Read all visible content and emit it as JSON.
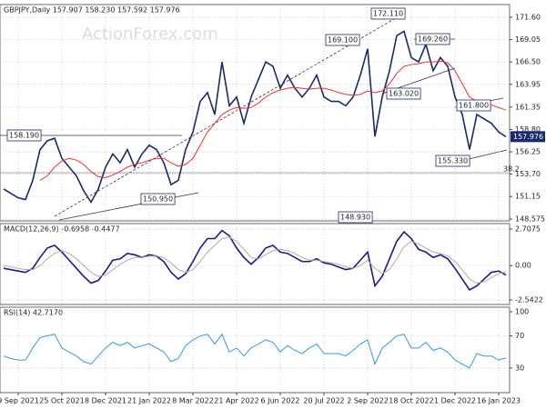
{
  "chart_data": [
    {
      "type": "line",
      "title": "GBPJPY,Daily 157.907 158.230 157.592 157.976",
      "watermark": "ActionForex.com",
      "last_price_label": "157.976",
      "categories": [
        null,
        null,
        "9 Sep 2021",
        null,
        null,
        null,
        null,
        null,
        "25 Oct 2021",
        null,
        null,
        null,
        null,
        null,
        "8 Dec 2021",
        null,
        null,
        null,
        null,
        null,
        "21 Jan 2022",
        null,
        null,
        null,
        null,
        null,
        "8 Mar 2022",
        null,
        null,
        null,
        null,
        null,
        "21 Apr 2022",
        null,
        null,
        null,
        null,
        null,
        "6 Jun 2022",
        null,
        null,
        null,
        null,
        null,
        "20 Jul 2022",
        null,
        null,
        null,
        null,
        null,
        "2 Sep 2022",
        null,
        null,
        null,
        null,
        null,
        "18 Oct 2022",
        null,
        null,
        null,
        null,
        null,
        "1 Dec 2022",
        null,
        null,
        null,
        null,
        null,
        "16 Jan 2023",
        null
      ],
      "series": [
        {
          "name": "Price",
          "color": "#1a2a6c",
          "values": [
            152.0,
            151.5,
            151.0,
            150.8,
            153.0,
            156.5,
            157.5,
            157.8,
            155.5,
            154.5,
            153.5,
            151.8,
            150.5,
            152.0,
            154.5,
            156.0,
            155.0,
            156.5,
            154.5,
            156.0,
            157.0,
            156.5,
            155.0,
            152.5,
            153.0,
            156.5,
            158.5,
            162.0,
            163.0,
            160.5,
            166.5,
            161.5,
            162.5,
            159.5,
            162.5,
            164.5,
            166.5,
            166.0,
            163.5,
            165.0,
            163.5,
            162.5,
            163.5,
            165.0,
            162.5,
            162.0,
            162.0,
            161.5,
            162.5,
            165.0,
            168.0,
            158.0,
            162.5,
            165.5,
            169.5,
            170.0,
            167.0,
            166.5,
            168.5,
            165.5,
            167.0,
            166.0,
            162.5,
            160.5,
            156.5,
            160.5,
            160.0,
            159.5,
            158.5,
            157.976
          ]
        },
        {
          "name": "MA",
          "color": "#e8312f",
          "values": [
            null,
            null,
            null,
            null,
            null,
            153.0,
            153.5,
            154.5,
            155.2,
            155.5,
            155.3,
            154.8,
            154.0,
            153.4,
            153.3,
            153.6,
            154.0,
            154.5,
            154.8,
            155.0,
            155.3,
            155.5,
            155.5,
            155.0,
            154.6,
            154.8,
            155.5,
            157.0,
            158.5,
            159.5,
            160.5,
            161.0,
            161.3,
            161.2,
            161.3,
            161.8,
            162.5,
            163.0,
            163.3,
            163.5,
            163.6,
            163.5,
            163.4,
            163.5,
            163.5,
            163.3,
            163.0,
            162.8,
            162.7,
            162.8,
            163.2,
            163.0,
            163.2,
            164.0,
            165.2,
            166.0,
            166.2,
            166.3,
            166.5,
            166.5,
            166.6,
            166.4,
            165.5,
            164.0,
            162.5,
            162.0,
            161.8,
            161.6,
            161.3,
            161.0
          ]
        }
      ],
      "ylim": [
        148.37,
        173.05
      ],
      "yticks": [
        148.575,
        151.15,
        {
          "value": 153.7,
          "label": "153.70"
        },
        156.25,
        {
          "value": 158.8,
          "label": "158.80"
        },
        161.35,
        163.95,
        {
          "value": 166.5,
          "label": "166.50"
        },
        169.05,
        {
          "value": 171.6,
          "label": "171.60"
        }
      ],
      "annotations": [
        "158.190",
        "150.950",
        "148.930",
        "169.100",
        "172.110",
        "169.260",
        "163.020",
        "161.800",
        "155.330",
        "38.2"
      ],
      "grid": true
    },
    {
      "type": "line",
      "title": "MACD(12,26,9) -0.6958 -0.4477",
      "series": [
        {
          "name": "MACD",
          "color": "#1a1a8c",
          "values": [
            -0.2,
            -0.3,
            -0.4,
            -0.5,
            -0.2,
            0.6,
            1.3,
            1.5,
            1.0,
            0.4,
            -0.2,
            -0.8,
            -1.3,
            -1.1,
            -0.4,
            0.4,
            0.5,
            0.9,
            0.8,
            0.6,
            0.8,
            0.7,
            0.3,
            -0.5,
            -1.0,
            -0.6,
            0.3,
            1.3,
            2.0,
            2.0,
            2.6,
            2.2,
            1.3,
            0.6,
            0.1,
            0.6,
            1.3,
            1.5,
            1.0,
            0.9,
            0.6,
            0.3,
            0.3,
            0.5,
            0.2,
            0.1,
            -0.1,
            -0.3,
            -0.2,
            0.4,
            1.0,
            -1.5,
            -0.8,
            0.5,
            1.8,
            2.5,
            2.0,
            1.2,
            1.0,
            0.6,
            0.8,
            0.5,
            -0.2,
            -1.0,
            -1.8,
            -1.5,
            -1.0,
            -0.5,
            -0.4,
            -0.6958
          ]
        },
        {
          "name": "Signal",
          "color": "#c8a0a0",
          "values": [
            0.0,
            -0.1,
            -0.2,
            -0.3,
            -0.3,
            0.0,
            0.5,
            0.9,
            1.1,
            0.9,
            0.5,
            0.0,
            -0.5,
            -0.8,
            -0.7,
            -0.3,
            0.1,
            0.4,
            0.6,
            0.6,
            0.7,
            0.7,
            0.6,
            0.2,
            -0.3,
            -0.5,
            -0.3,
            0.3,
            1.0,
            1.5,
            2.0,
            2.1,
            1.8,
            1.2,
            0.6,
            0.5,
            0.8,
            1.1,
            1.2,
            1.1,
            0.9,
            0.6,
            0.4,
            0.4,
            0.3,
            0.2,
            0.1,
            -0.1,
            -0.2,
            0.0,
            0.4,
            -0.2,
            -0.6,
            -0.3,
            0.5,
            1.4,
            1.8,
            1.6,
            1.3,
            1.0,
            0.9,
            0.7,
            0.3,
            -0.3,
            -1.0,
            -1.3,
            -1.2,
            -0.9,
            -0.6,
            -0.4477
          ]
        }
      ],
      "ylim": [
        -2.88,
        3.11
      ],
      "yticks": [
        -2.5422,
        {
          "value": 0,
          "label": "0.00"
        },
        2.7075
      ]
    },
    {
      "type": "line",
      "title": "RSI(14) 42.7170",
      "series": [
        {
          "name": "RSI",
          "color": "#3399e0",
          "values": [
            45,
            42,
            40,
            40,
            55,
            68,
            70,
            72,
            55,
            50,
            45,
            38,
            35,
            45,
            55,
            62,
            58,
            62,
            55,
            58,
            60,
            55,
            50,
            38,
            42,
            58,
            65,
            70,
            72,
            60,
            72,
            50,
            55,
            45,
            55,
            60,
            65,
            62,
            50,
            58,
            52,
            48,
            55,
            60,
            48,
            48,
            48,
            45,
            52,
            60,
            65,
            35,
            55,
            62,
            70,
            72,
            55,
            55,
            62,
            52,
            55,
            50,
            40,
            35,
            30,
            48,
            45,
            45,
            40,
            42.717
          ]
        }
      ],
      "ylim": [
        -0.5,
        105.6
      ],
      "yticks": [
        30,
        70,
        100
      ]
    }
  ]
}
